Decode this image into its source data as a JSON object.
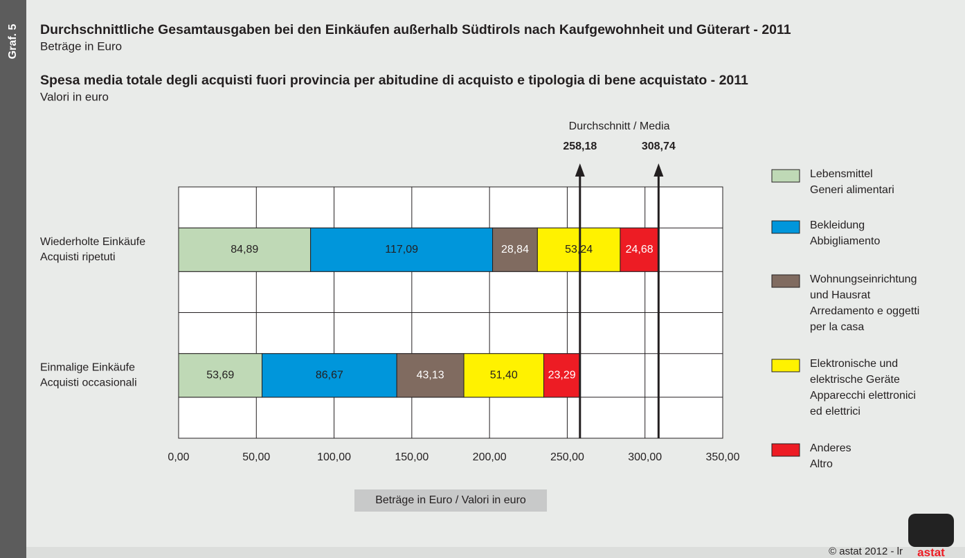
{
  "chart_data": {
    "type": "stacked-barh",
    "graph_label": "Graf. 5",
    "title": "Durchschnittliche Gesamtausgaben bei den Einkäufen außerhalb Südtirols nach Kaufgewohnheit und Güterart - 2011",
    "subtitle": "Beträge in Euro",
    "title_it": "Spesa media totale degli acquisti fuori provincia per abitudine di acquisto e tipologia di bene acquistato - 2011",
    "subtitle_it": "Valori in euro",
    "xlabel": "Beträge in Euro / Valori in euro",
    "categories": [
      [
        "Wiederholte Einkäufe",
        "Acquisti ripetuti"
      ],
      [
        "Einmalige Einkäufe",
        "Acquisti occasionali"
      ]
    ],
    "series": [
      {
        "name": [
          "Lebensmittel",
          "Generi alimentari"
        ],
        "color": "#bfd9b6",
        "value_label_color": "#231f20",
        "values": [
          84.89,
          53.69
        ],
        "value_labels": [
          "84,89",
          "53,69"
        ]
      },
      {
        "name": [
          "Bekleidung",
          "Abbigliamento"
        ],
        "color": "#0096db",
        "value_label_color": "#231f20",
        "values": [
          117.09,
          86.67
        ],
        "value_labels": [
          "117,09",
          "86,67"
        ]
      },
      {
        "name": [
          "Wohnungseinrichtung",
          "und Hausrat",
          "Arredamento e oggetti",
          "per la casa"
        ],
        "color": "#806b60",
        "value_label_color": "#ffffff",
        "values": [
          28.84,
          43.13
        ],
        "value_labels": [
          "28,84",
          "43,13"
        ]
      },
      {
        "name": [
          "Elektronische und",
          "elektrische Geräte",
          "Apparecchi elettronici",
          "ed elettrici"
        ],
        "color": "#fff200",
        "value_label_color": "#231f20",
        "values": [
          53.24,
          51.4
        ],
        "value_labels": [
          "53,24",
          "51,40"
        ]
      },
      {
        "name": [
          "Anderes",
          "Altro"
        ],
        "color": "#ed1c24",
        "value_label_color": "#ffffff",
        "values": [
          24.68,
          23.29
        ],
        "value_labels": [
          "24,68",
          "23,29"
        ]
      }
    ],
    "average_label": "Durchschnitt / Media",
    "averages": [
      {
        "value": 258.18,
        "label": "258,18"
      },
      {
        "value": 308.74,
        "label": "308,74"
      }
    ],
    "xlim": [
      0,
      350
    ],
    "xticks": [
      {
        "value": 0,
        "label": "0,00"
      },
      {
        "value": 50,
        "label": "50,00"
      },
      {
        "value": 100,
        "label": "100,00"
      },
      {
        "value": 150,
        "label": "150,00"
      },
      {
        "value": 200,
        "label": "200,00"
      },
      {
        "value": 250,
        "label": "250,00"
      },
      {
        "value": 300,
        "label": "300,00"
      },
      {
        "value": 350,
        "label": "350,00"
      }
    ],
    "grid": true,
    "legend": "right",
    "copyright": "©  astat 2012 - lr",
    "logo": "astat"
  }
}
